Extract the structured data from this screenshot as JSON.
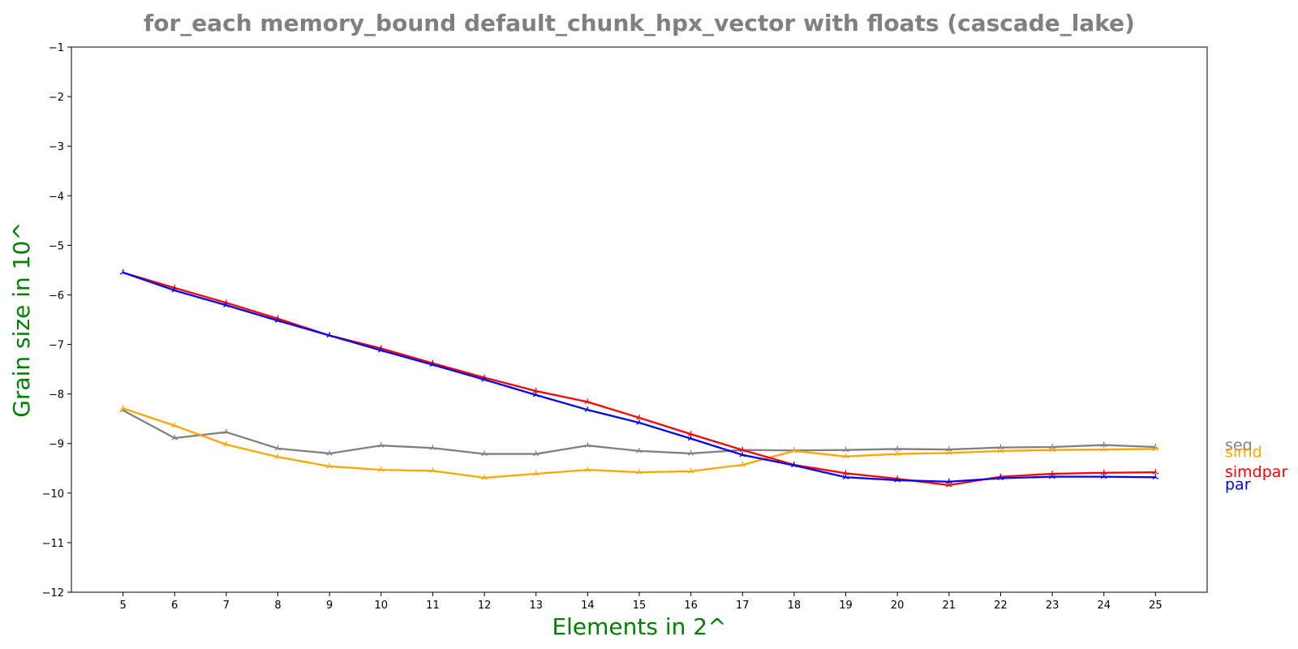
{
  "chart_data": {
    "type": "line",
    "title": "for_each memory_bound default_chunk_hpx_vector with floats  (cascade_lake)",
    "xlabel": "Elements in 2^",
    "ylabel": "Grain size in 10^",
    "xlim": [
      4,
      26
    ],
    "ylim": [
      -12,
      -1
    ],
    "x_ticks": [
      5,
      6,
      7,
      8,
      9,
      10,
      11,
      12,
      13,
      14,
      15,
      16,
      17,
      18,
      19,
      20,
      21,
      22,
      23,
      24,
      25
    ],
    "y_ticks": [
      -1,
      -2,
      -3,
      -4,
      -5,
      -6,
      -7,
      -8,
      -9,
      -10,
      -11,
      -12
    ],
    "y_tick_labels": [
      "−1",
      "−2",
      "−3",
      "−4",
      "−5",
      "−6",
      "−7",
      "−8",
      "−9",
      "−10",
      "−11",
      "−12"
    ],
    "grid": false,
    "legend": "labels at line ends, right of plot",
    "x": [
      5,
      6,
      7,
      8,
      9,
      10,
      11,
      12,
      13,
      14,
      15,
      16,
      17,
      18,
      19,
      20,
      21,
      22,
      23,
      24,
      25
    ],
    "series": [
      {
        "name": "seq",
        "color": "#808080",
        "values": [
          -8.33,
          -8.89,
          -8.77,
          -9.1,
          -9.2,
          -9.04,
          -9.09,
          -9.21,
          -9.21,
          -9.04,
          -9.15,
          -9.2,
          -9.13,
          -9.14,
          -9.13,
          -9.11,
          -9.12,
          -9.08,
          -9.07,
          -9.03,
          -9.07
        ]
      },
      {
        "name": "simd",
        "color": "#ffa500",
        "values": [
          -8.29,
          -8.64,
          -9.02,
          -9.27,
          -9.46,
          -9.53,
          -9.55,
          -9.69,
          -9.61,
          -9.53,
          -9.58,
          -9.56,
          -9.43,
          -9.15,
          -9.26,
          -9.21,
          -9.19,
          -9.15,
          -9.13,
          -9.12,
          -9.11
        ]
      },
      {
        "name": "simdpar",
        "color": "#ff0000",
        "values": [
          -5.55,
          -5.86,
          -6.16,
          -6.48,
          -6.82,
          -7.08,
          -7.38,
          -7.67,
          -7.94,
          -8.16,
          -8.48,
          -8.81,
          -9.13,
          -9.43,
          -9.6,
          -9.71,
          -9.84,
          -9.67,
          -9.61,
          -9.59,
          -9.58
        ]
      },
      {
        "name": "par",
        "color": "#0000ff",
        "values": [
          -5.55,
          -5.91,
          -6.21,
          -6.52,
          -6.82,
          -7.12,
          -7.41,
          -7.71,
          -8.02,
          -8.32,
          -8.58,
          -8.9,
          -9.23,
          -9.44,
          -9.68,
          -9.74,
          -9.77,
          -9.7,
          -9.67,
          -9.67,
          -9.68
        ]
      }
    ]
  }
}
